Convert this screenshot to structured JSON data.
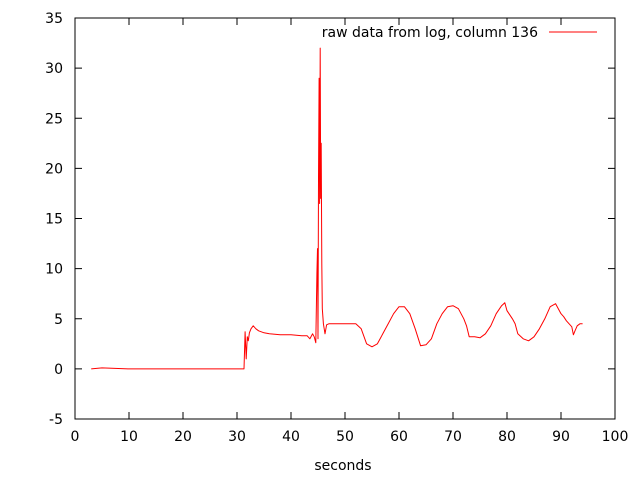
{
  "chart_data": {
    "type": "line",
    "title": "",
    "xlabel": "seconds",
    "ylabel": "",
    "xlim": [
      0,
      100
    ],
    "ylim": [
      -5,
      35
    ],
    "xticks": [
      0,
      10,
      20,
      30,
      40,
      50,
      60,
      70,
      80,
      90,
      100
    ],
    "yticks": [
      -5,
      0,
      5,
      10,
      15,
      20,
      25,
      30,
      35
    ],
    "grid": false,
    "legend_position": "top-right",
    "series": [
      {
        "name": "raw data from log, column 136",
        "color": "#ff0000",
        "x": [
          3,
          5,
          10,
          15,
          20,
          25,
          30,
          31.3,
          31.5,
          31.7,
          31.9,
          32.1,
          32.3,
          32.6,
          33,
          33.5,
          34,
          35,
          36,
          38,
          40,
          42,
          43,
          43.5,
          44,
          44.3,
          44.6,
          44.8,
          44.9,
          45.0,
          45.1,
          45.2,
          45.3,
          45.4,
          45.5,
          45.6,
          45.7,
          45.8,
          46.0,
          46.3,
          46.6,
          47,
          48,
          50,
          52,
          53,
          54,
          55,
          56,
          57,
          58,
          59,
          60,
          61,
          62,
          63,
          64,
          65,
          66,
          67,
          68,
          69,
          70,
          71,
          72,
          72.5,
          73,
          74,
          75,
          76,
          77,
          78,
          79,
          79.6,
          80,
          81,
          81.5,
          82,
          83,
          84,
          85,
          86,
          87,
          88,
          89,
          90,
          90.5,
          91,
          92,
          92.3,
          92.6,
          93,
          93.5,
          94
        ],
        "y": [
          0,
          0.1,
          0,
          0,
          0,
          0,
          0,
          0,
          3.7,
          1.0,
          3.2,
          2.8,
          3.6,
          4.0,
          4.3,
          4.0,
          3.8,
          3.6,
          3.5,
          3.4,
          3.4,
          3.3,
          3.3,
          3.0,
          3.5,
          3.2,
          2.6,
          9.5,
          12.0,
          3.0,
          19.0,
          29.0,
          16.5,
          32.0,
          17.0,
          22.5,
          10.5,
          6.0,
          4.5,
          3.5,
          4.4,
          4.5,
          4.5,
          4.5,
          4.5,
          4.0,
          2.5,
          2.2,
          2.5,
          3.5,
          4.5,
          5.5,
          6.2,
          6.2,
          5.5,
          4.0,
          2.3,
          2.4,
          3.0,
          4.5,
          5.5,
          6.2,
          6.3,
          6.0,
          5.0,
          4.3,
          3.2,
          3.2,
          3.1,
          3.5,
          4.3,
          5.5,
          6.3,
          6.6,
          5.8,
          5.0,
          4.5,
          3.5,
          3.0,
          2.8,
          3.2,
          4.0,
          5.0,
          6.2,
          6.5,
          5.5,
          5.2,
          4.8,
          4.2,
          3.4,
          3.8,
          4.3,
          4.5,
          4.5
        ]
      }
    ]
  }
}
